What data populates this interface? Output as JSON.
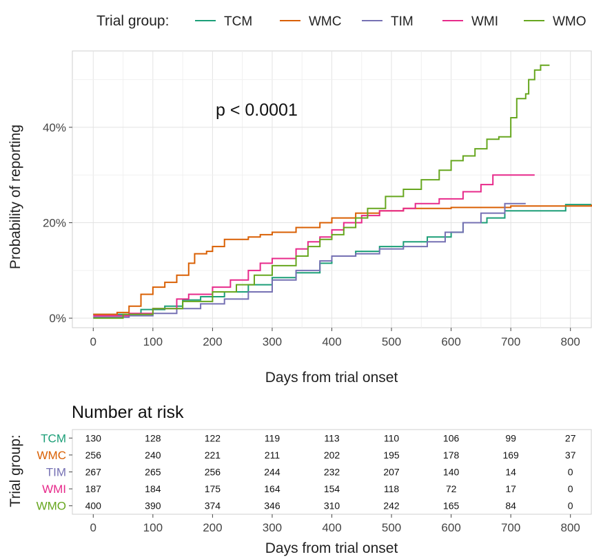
{
  "legend": {
    "title": "Trial group:",
    "items": [
      {
        "label": "TCM",
        "color": "#1b9e77"
      },
      {
        "label": "WMC",
        "color": "#d95f02"
      },
      {
        "label": "TIM",
        "color": "#7570b3"
      },
      {
        "label": "WMI",
        "color": "#e7298a"
      },
      {
        "label": "WMO",
        "color": "#66a61e"
      }
    ]
  },
  "annotation": "p < 0.0001",
  "chart_data": [
    {
      "type": "line",
      "step": true,
      "title": "",
      "xlabel": "Days from trial onset",
      "ylabel": "Probability of reporting",
      "xlim": [
        -35,
        835
      ],
      "ylim": [
        -2,
        56
      ],
      "x_ticks": [
        0,
        100,
        200,
        300,
        400,
        500,
        600,
        700,
        800
      ],
      "y_ticks": [
        0,
        20,
        40
      ],
      "y_tick_labels": [
        "0%",
        "20%",
        "40%"
      ],
      "grid": true,
      "legend_position": "top",
      "series": [
        {
          "name": "TCM",
          "points": [
            [
              0,
              0.8
            ],
            [
              50,
              0.8
            ],
            [
              80,
              1.8
            ],
            [
              120,
              2.5
            ],
            [
              150,
              3.8
            ],
            [
              180,
              4.5
            ],
            [
              220,
              5.5
            ],
            [
              260,
              7
            ],
            [
              300,
              8.5
            ],
            [
              340,
              9.5
            ],
            [
              380,
              11.5
            ],
            [
              400,
              13
            ],
            [
              440,
              14
            ],
            [
              480,
              15
            ],
            [
              520,
              16
            ],
            [
              560,
              17
            ],
            [
              600,
              18
            ],
            [
              620,
              20
            ],
            [
              660,
              21
            ],
            [
              690,
              22.5
            ],
            [
              790,
              22.5
            ],
            [
              792,
              23.8
            ],
            [
              835,
              23.8
            ]
          ]
        },
        {
          "name": "WMC",
          "points": [
            [
              0,
              0.8
            ],
            [
              40,
              1.2
            ],
            [
              60,
              2.5
            ],
            [
              80,
              5
            ],
            [
              100,
              6.5
            ],
            [
              120,
              7.5
            ],
            [
              140,
              9
            ],
            [
              160,
              11.5
            ],
            [
              170,
              13.5
            ],
            [
              190,
              14
            ],
            [
              200,
              15
            ],
            [
              220,
              16.5
            ],
            [
              260,
              17
            ],
            [
              280,
              17.5
            ],
            [
              300,
              18
            ],
            [
              340,
              19
            ],
            [
              380,
              20
            ],
            [
              400,
              21
            ],
            [
              440,
              22
            ],
            [
              480,
              22.5
            ],
            [
              520,
              23
            ],
            [
              600,
              23.2
            ],
            [
              700,
              23.5
            ],
            [
              835,
              23.8
            ]
          ]
        },
        {
          "name": "TIM",
          "points": [
            [
              0,
              0.2
            ],
            [
              60,
              0.5
            ],
            [
              100,
              1
            ],
            [
              140,
              2
            ],
            [
              180,
              3
            ],
            [
              220,
              4
            ],
            [
              260,
              5.5
            ],
            [
              300,
              8
            ],
            [
              340,
              10
            ],
            [
              380,
              12
            ],
            [
              400,
              13
            ],
            [
              440,
              13.5
            ],
            [
              480,
              14.5
            ],
            [
              520,
              15
            ],
            [
              560,
              16
            ],
            [
              590,
              18
            ],
            [
              620,
              20
            ],
            [
              650,
              22
            ],
            [
              690,
              24
            ],
            [
              725,
              24
            ]
          ]
        },
        {
          "name": "WMI",
          "points": [
            [
              0,
              0.5
            ],
            [
              60,
              1
            ],
            [
              100,
              2
            ],
            [
              140,
              4
            ],
            [
              160,
              5
            ],
            [
              200,
              6.5
            ],
            [
              230,
              8
            ],
            [
              260,
              10
            ],
            [
              280,
              11.5
            ],
            [
              300,
              12.5
            ],
            [
              340,
              14.5
            ],
            [
              360,
              16
            ],
            [
              380,
              17
            ],
            [
              400,
              18.5
            ],
            [
              420,
              20
            ],
            [
              450,
              21.5
            ],
            [
              480,
              22.5
            ],
            [
              520,
              23
            ],
            [
              540,
              24
            ],
            [
              580,
              25
            ],
            [
              620,
              26.5
            ],
            [
              650,
              28
            ],
            [
              670,
              30
            ],
            [
              740,
              30
            ]
          ]
        },
        {
          "name": "WMO",
          "points": [
            [
              0,
              0
            ],
            [
              50,
              0.8
            ],
            [
              100,
              2
            ],
            [
              150,
              3.5
            ],
            [
              200,
              5.5
            ],
            [
              240,
              7
            ],
            [
              270,
              9
            ],
            [
              300,
              11
            ],
            [
              340,
              13
            ],
            [
              360,
              15
            ],
            [
              380,
              16.5
            ],
            [
              400,
              17.5
            ],
            [
              420,
              19
            ],
            [
              440,
              21
            ],
            [
              460,
              23
            ],
            [
              490,
              25.5
            ],
            [
              520,
              27
            ],
            [
              550,
              29
            ],
            [
              580,
              31
            ],
            [
              600,
              33
            ],
            [
              620,
              34
            ],
            [
              640,
              35.5
            ],
            [
              660,
              37.5
            ],
            [
              680,
              38
            ],
            [
              700,
              42
            ],
            [
              710,
              46
            ],
            [
              725,
              47
            ],
            [
              730,
              50
            ],
            [
              740,
              52
            ],
            [
              750,
              53
            ],
            [
              765,
              53
            ]
          ]
        }
      ]
    },
    {
      "type": "table",
      "title": "Number at risk",
      "xlabel": "Days from trial onset",
      "ylabel": "Trial group:",
      "x": [
        0,
        100,
        200,
        300,
        400,
        500,
        600,
        700,
        800
      ],
      "rows": [
        {
          "name": "TCM",
          "values": [
            130,
            128,
            122,
            119,
            113,
            110,
            106,
            99,
            27
          ]
        },
        {
          "name": "WMC",
          "values": [
            256,
            240,
            221,
            211,
            202,
            195,
            178,
            169,
            37
          ]
        },
        {
          "name": "TIM",
          "values": [
            267,
            265,
            256,
            244,
            232,
            207,
            140,
            14,
            0
          ]
        },
        {
          "name": "WMI",
          "values": [
            187,
            184,
            175,
            164,
            154,
            118,
            72,
            17,
            0
          ]
        },
        {
          "name": "WMO",
          "values": [
            400,
            390,
            374,
            346,
            310,
            242,
            165,
            84,
            0
          ]
        }
      ]
    }
  ]
}
